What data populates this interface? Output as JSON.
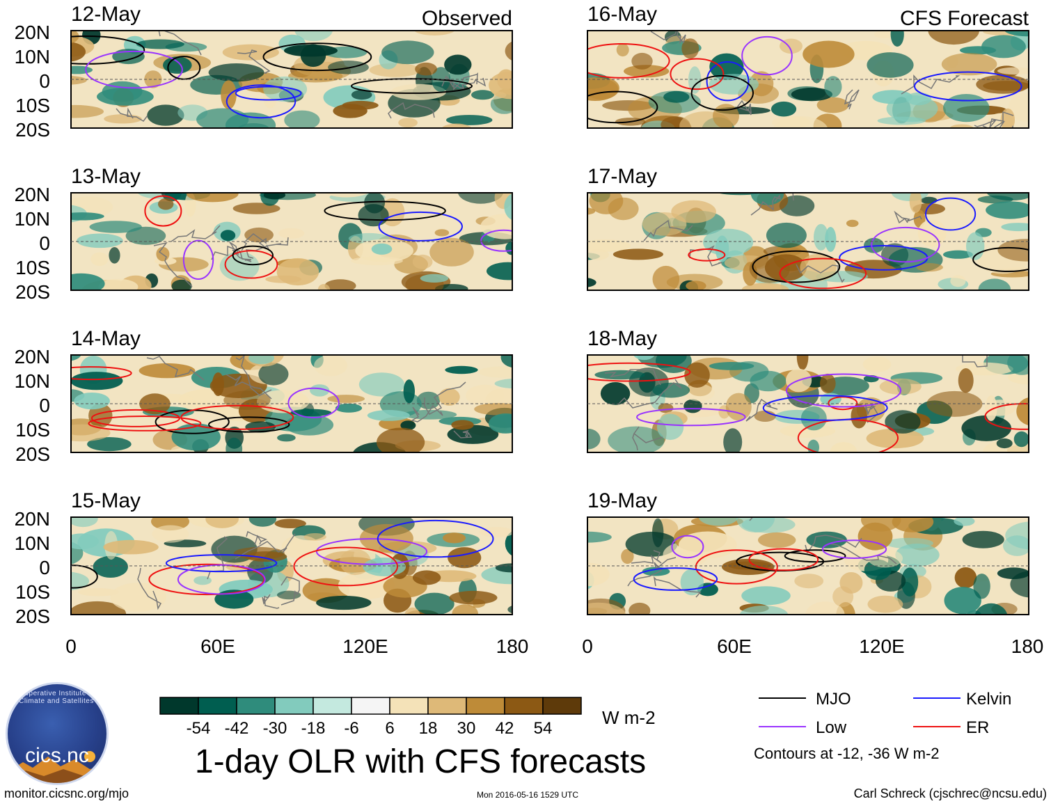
{
  "titles": {
    "observed": "Observed",
    "forecast": "CFS Forecast",
    "main": "1-day OLR with CFS forecasts"
  },
  "panels": [
    {
      "date": "12-May",
      "column": "observed"
    },
    {
      "date": "13-May",
      "column": "observed"
    },
    {
      "date": "14-May",
      "column": "observed"
    },
    {
      "date": "15-May",
      "column": "observed"
    },
    {
      "date": "16-May",
      "column": "forecast"
    },
    {
      "date": "17-May",
      "column": "forecast"
    },
    {
      "date": "18-May",
      "column": "forecast"
    },
    {
      "date": "19-May",
      "column": "forecast"
    }
  ],
  "axes": {
    "lat_labels": [
      "20N",
      "10N",
      "0",
      "10S",
      "20S"
    ],
    "lon_labels": [
      "0",
      "60E",
      "120E",
      "180"
    ]
  },
  "colorbar": {
    "colors": [
      "#00382c",
      "#005e50",
      "#2f8c7c",
      "#82cbbd",
      "#c4e9df",
      "#f5f5f5",
      "#f4e2b8",
      "#deb978",
      "#be8b38",
      "#8c5914",
      "#5e3a0a"
    ],
    "labels": [
      "-54",
      "-42",
      "-30",
      "-18",
      "-6",
      "6",
      "18",
      "30",
      "42",
      "54"
    ],
    "unit": "W m-2"
  },
  "legend": {
    "items": [
      {
        "label": "MJO",
        "color": "#000000"
      },
      {
        "label": "Kelvin",
        "color": "#1a1aff"
      },
      {
        "label": "Low",
        "color": "#9933ff"
      },
      {
        "label": "ER",
        "color": "#ee1111"
      }
    ],
    "note": "Contours at -12, -36 W m-2"
  },
  "logo": {
    "text": "cics.nc",
    "arc_text": "Cooperative Institute for Climate and Satellites"
  },
  "footer": {
    "left": "monitor.cicsnc.org/mjo",
    "center": "Mon 2016-05-16 1529 UTC",
    "right": "Carl Schreck (cjschrec@ncsu.edu)"
  }
}
